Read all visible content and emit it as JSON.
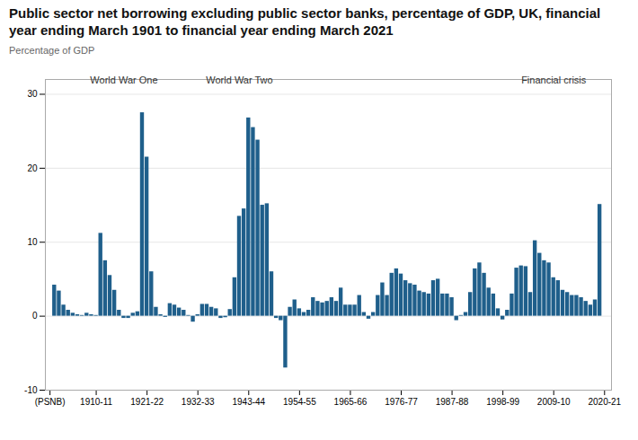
{
  "chart_data": {
    "type": "bar",
    "title": "Public sector net borrowing excluding public sector banks, percentage of GDP, UK, financial year ending March 1901 to financial year ending March 2021",
    "y_label": "Percentage of GDP",
    "color": "#1f5f8b",
    "grid": true,
    "xlim": [
      1899.0,
      2021.5
    ],
    "xticks": [
      {
        "value": 1900,
        "label": "(PSNB)"
      },
      {
        "value": 1910,
        "label": "1910-11"
      },
      {
        "value": 1921,
        "label": "1921-22"
      },
      {
        "value": 1932,
        "label": "1932-33"
      },
      {
        "value": 1943,
        "label": "1943-44"
      },
      {
        "value": 1954,
        "label": "1954-55"
      },
      {
        "value": 1965,
        "label": "1965-66"
      },
      {
        "value": 1976,
        "label": "1976-77"
      },
      {
        "value": 1987,
        "label": "1987-88"
      },
      {
        "value": 1998,
        "label": "1998-99"
      },
      {
        "value": 2009,
        "label": "2009-10"
      },
      {
        "value": 2020,
        "label": "2020-21"
      }
    ],
    "ylim": [
      -10,
      32
    ],
    "yticks": [
      -10,
      0,
      10,
      20,
      30
    ],
    "annotations": [
      {
        "text": "World War One",
        "x": 1916,
        "y": 31.5
      },
      {
        "text": "World War Two",
        "x": 1941,
        "y": 31.5
      },
      {
        "text": "Financial crisis",
        "x": 2009,
        "y": 31.5
      }
    ],
    "x": [
      1901,
      1902,
      1903,
      1904,
      1905,
      1906,
      1907,
      1908,
      1909,
      1910,
      1911,
      1912,
      1913,
      1914,
      1915,
      1916,
      1917,
      1918,
      1919,
      1920,
      1921,
      1922,
      1923,
      1924,
      1925,
      1926,
      1927,
      1928,
      1929,
      1930,
      1931,
      1932,
      1933,
      1934,
      1935,
      1936,
      1937,
      1938,
      1939,
      1940,
      1941,
      1942,
      1943,
      1944,
      1945,
      1946,
      1947,
      1948,
      1949,
      1950,
      1951,
      1952,
      1953,
      1954,
      1955,
      1956,
      1957,
      1958,
      1959,
      1960,
      1961,
      1962,
      1963,
      1964,
      1965,
      1966,
      1967,
      1968,
      1969,
      1970,
      1971,
      1972,
      1973,
      1974,
      1975,
      1976,
      1977,
      1978,
      1979,
      1980,
      1981,
      1982,
      1983,
      1984,
      1985,
      1986,
      1987,
      1988,
      1989,
      1990,
      1991,
      1992,
      1993,
      1994,
      1995,
      1996,
      1997,
      1998,
      1999,
      2000,
      2001,
      2002,
      2003,
      2004,
      2005,
      2006,
      2007,
      2008,
      2009,
      2010,
      2011,
      2012,
      2013,
      2014,
      2015,
      2016,
      2017,
      2018,
      2019,
      2020
    ],
    "values": [
      4.2,
      3.4,
      1.5,
      0.8,
      0.4,
      0.2,
      0.1,
      0.4,
      0.2,
      0.1,
      11.2,
      7.5,
      5.5,
      3.5,
      0.8,
      -0.3,
      -0.3,
      0.4,
      0.6,
      27.5,
      21.5,
      6.0,
      1.2,
      0.2,
      -0.15,
      1.7,
      1.5,
      1.1,
      0.8,
      0.1,
      -0.8,
      0.2,
      1.6,
      1.6,
      1.2,
      1.0,
      -0.3,
      -0.2,
      0.9,
      5.2,
      13.5,
      14.5,
      26.8,
      25.5,
      23.8,
      15.0,
      15.2,
      6.0,
      -0.3,
      -0.6,
      -7.0,
      1.2,
      2.2,
      1.0,
      0.5,
      0.8,
      2.5,
      2.0,
      1.8,
      2.0,
      2.5,
      2.0,
      3.8,
      1.5,
      1.5,
      1.5,
      2.8,
      0.5,
      -0.4,
      0.5,
      2.8,
      4.5,
      2.8,
      5.8,
      6.4,
      5.7,
      4.8,
      4.4,
      4.2,
      3.4,
      3.2,
      3.0,
      4.8,
      5.0,
      3.0,
      3.0,
      2.5,
      -0.6,
      0.1,
      0.5,
      3.2,
      6.4,
      7.2,
      5.8,
      3.8,
      3.0,
      1.0,
      -0.5,
      0.8,
      3.0,
      6.5,
      6.8,
      6.7,
      3.2,
      10.2,
      8.5,
      7.5,
      7.2,
      5.2,
      4.8,
      3.5,
      3.2,
      2.8,
      2.8,
      2.5,
      2.0,
      1.5,
      2.2,
      15.1,
      0.0
    ]
  }
}
